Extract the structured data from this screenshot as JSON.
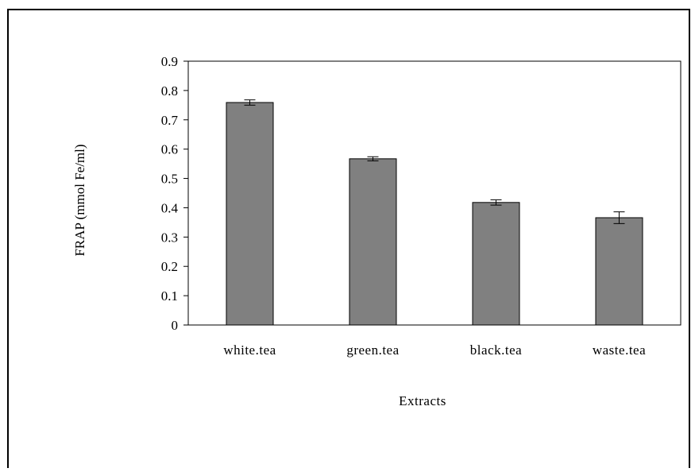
{
  "chart_data": {
    "type": "bar",
    "xlabel": "Extracts",
    "ylabel": "FRAP (mmol Fe/ml)",
    "categories": [
      "white.tea",
      "green.tea",
      "black.tea",
      "waste.tea"
    ],
    "values": [
      0.759,
      0.567,
      0.418,
      0.366
    ],
    "errors": [
      0.009,
      0.007,
      0.009,
      0.02
    ],
    "ylim": [
      0,
      0.9
    ],
    "yticks": [
      "0",
      "0.1",
      "0.2",
      "0.3",
      "0.4",
      "0.5",
      "0.6",
      "0.7",
      "0.8",
      "0.9"
    ],
    "grid": false,
    "legend": "none",
    "bar_color": "#808080"
  }
}
